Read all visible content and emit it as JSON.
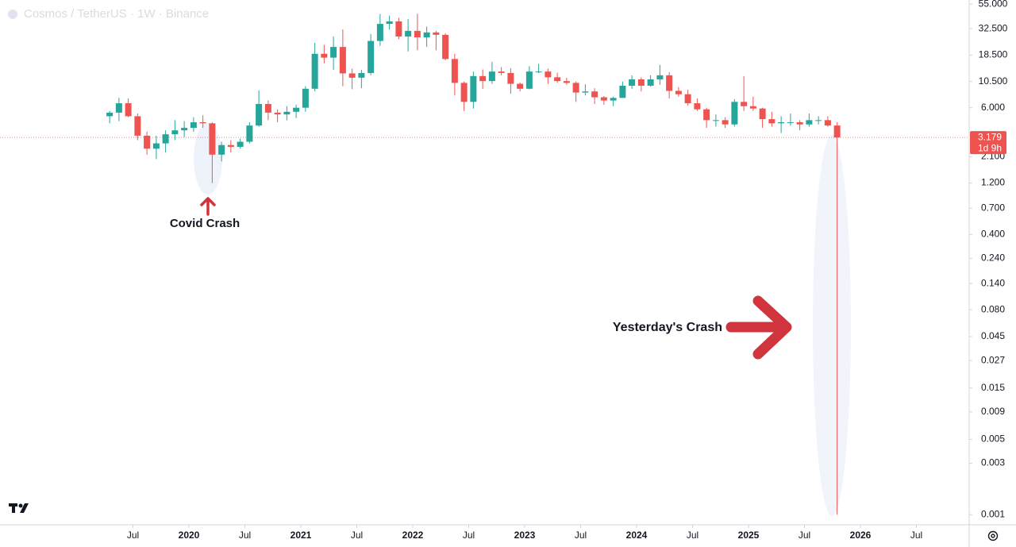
{
  "chart_data": {
    "type": "candlestick",
    "title": "Cosmos / TetherUS · 1W · Binance",
    "log_scale": true,
    "up_color": "#26a69a",
    "down_color": "#ef5350",
    "x": [
      "2019-04",
      "2019-05",
      "2019-06",
      "2019-07",
      "2019-08",
      "2019-09",
      "2019-10",
      "2019-11",
      "2019-12",
      "2020-01",
      "2020-02",
      "2020-03",
      "2020-04",
      "2020-05",
      "2020-06",
      "2020-07",
      "2020-08",
      "2020-09",
      "2020-10",
      "2020-11",
      "2020-12",
      "2021-01",
      "2021-02",
      "2021-03",
      "2021-04",
      "2021-05",
      "2021-06",
      "2021-07",
      "2021-08",
      "2021-09",
      "2021-10",
      "2021-11",
      "2021-12",
      "2022-01",
      "2022-02",
      "2022-03",
      "2022-04",
      "2022-05",
      "2022-06",
      "2022-07",
      "2022-08",
      "2022-09",
      "2022-10",
      "2022-11",
      "2022-12",
      "2023-01",
      "2023-02",
      "2023-03",
      "2023-04",
      "2023-05",
      "2023-06",
      "2023-07",
      "2023-08",
      "2023-09",
      "2023-10",
      "2023-11",
      "2023-12",
      "2024-01",
      "2024-02",
      "2024-03",
      "2024-04",
      "2024-05",
      "2024-06",
      "2024-07",
      "2024-08",
      "2024-09",
      "2024-10",
      "2024-11",
      "2024-12",
      "2025-01",
      "2025-02",
      "2025-03",
      "2025-04",
      "2025-05",
      "2025-06",
      "2025-07",
      "2025-08",
      "2025-09",
      "2025-10"
    ],
    "open": [
      5.0,
      5.4,
      6.6,
      5.0,
      3.3,
      2.5,
      2.8,
      3.4,
      3.7,
      3.9,
      4.4,
      4.3,
      2.2,
      2.7,
      2.6,
      2.9,
      4.1,
      6.5,
      5.4,
      5.2,
      5.5,
      6.0,
      9.0,
      19.0,
      17.5,
      22.0,
      12.5,
      11.4,
      12.6,
      25.0,
      36.0,
      38.0,
      27.5,
      31.0,
      27.0,
      30.0,
      28.5,
      17.0,
      10.2,
      6.8,
      11.8,
      10.6,
      13.0,
      12.6,
      10.0,
      9.0,
      13.0,
      13.0,
      11.5,
      10.6,
      10.2,
      8.3,
      8.5,
      7.5,
      7.0,
      7.4,
      9.6,
      11.0,
      9.6,
      11.0,
      12.0,
      8.6,
      8.0,
      6.6,
      5.8,
      4.6,
      4.6,
      4.2,
      6.8,
      6.2,
      5.9,
      4.7,
      4.3,
      4.4,
      4.4,
      4.2,
      4.6,
      4.6,
      4.1
    ],
    "high": [
      5.6,
      7.4,
      7.3,
      5.3,
      3.6,
      3.3,
      3.7,
      4.6,
      4.5,
      4.9,
      5.1,
      4.4,
      2.9,
      3.0,
      3.1,
      4.4,
      8.7,
      7.0,
      5.8,
      6.2,
      6.4,
      9.5,
      24.0,
      23.0,
      27.5,
      32.0,
      13.8,
      13.5,
      29.0,
      44.5,
      43.0,
      41.0,
      40.0,
      44.7,
      34.0,
      31.0,
      29.5,
      19.0,
      10.5,
      13.0,
      13.6,
      16.0,
      14.3,
      14.0,
      10.3,
      14.6,
      15.3,
      13.8,
      12.7,
      11.4,
      10.5,
      9.9,
      9.1,
      7.7,
      7.6,
      10.5,
      12.0,
      11.5,
      12.0,
      15.0,
      12.8,
      9.3,
      8.8,
      7.3,
      6.0,
      5.2,
      4.9,
      7.2,
      11.8,
      7.6,
      6.0,
      5.5,
      5.0,
      5.3,
      4.6,
      5.3,
      5.0,
      5.0,
      4.4
    ],
    "low": [
      4.3,
      4.5,
      4.9,
      3.0,
      2.2,
      2.0,
      2.3,
      3.0,
      3.2,
      3.6,
      3.9,
      1.2,
      1.9,
      2.3,
      2.5,
      2.8,
      4.0,
      4.6,
      4.4,
      4.6,
      4.8,
      5.5,
      8.5,
      15.5,
      13.5,
      9.5,
      8.9,
      9.1,
      12.0,
      22.5,
      32.0,
      26.0,
      20.0,
      20.5,
      22.0,
      20.5,
      16.5,
      7.8,
      5.6,
      5.9,
      9.0,
      10.0,
      12.0,
      8.1,
      8.5,
      8.9,
      12.6,
      10.0,
      10.2,
      9.8,
      6.8,
      7.8,
      6.5,
      6.4,
      6.2,
      7.4,
      9.0,
      8.5,
      9.4,
      9.8,
      7.3,
      7.6,
      6.3,
      5.6,
      3.9,
      4.0,
      3.9,
      4.0,
      5.6,
      5.6,
      3.9,
      4.0,
      3.5,
      4.1,
      3.7,
      4.0,
      4.2,
      4.0,
      0.001
    ],
    "close": [
      5.4,
      6.6,
      5.0,
      3.3,
      2.5,
      2.8,
      3.4,
      3.7,
      3.9,
      4.4,
      4.3,
      2.2,
      2.7,
      2.6,
      2.9,
      4.1,
      6.5,
      5.4,
      5.2,
      5.5,
      6.0,
      9.0,
      19.0,
      17.5,
      22.0,
      12.5,
      11.4,
      12.6,
      25.0,
      36.0,
      38.0,
      27.5,
      31.0,
      27.0,
      30.0,
      28.5,
      17.0,
      10.2,
      6.8,
      11.8,
      10.6,
      13.0,
      12.6,
      10.0,
      9.0,
      13.0,
      13.0,
      11.5,
      10.6,
      10.2,
      8.3,
      8.5,
      7.5,
      7.0,
      7.4,
      9.6,
      11.0,
      9.6,
      11.0,
      12.0,
      8.6,
      8.0,
      6.6,
      5.8,
      4.6,
      4.6,
      4.2,
      6.8,
      6.2,
      5.9,
      4.7,
      4.3,
      4.4,
      4.4,
      4.2,
      4.6,
      4.6,
      4.1,
      3.179
    ],
    "countdown": "1d 9h",
    "ylim": [
      0.00082,
      60
    ],
    "yticks": [
      {
        "value": 55,
        "label": "55.000"
      },
      {
        "value": 32.5,
        "label": "32.500"
      },
      {
        "value": 18.5,
        "label": "18.500"
      },
      {
        "value": 10.5,
        "label": "10.500"
      },
      {
        "value": 6,
        "label": "6.000"
      },
      {
        "value": 2.1,
        "label": "2.100"
      },
      {
        "value": 1.2,
        "label": "1.200"
      },
      {
        "value": 0.7,
        "label": "0.700"
      },
      {
        "value": 0.4,
        "label": "0.400"
      },
      {
        "value": 0.24,
        "label": "0.240"
      },
      {
        "value": 0.14,
        "label": "0.140"
      },
      {
        "value": 0.08,
        "label": "0.080"
      },
      {
        "value": 0.045,
        "label": "0.045"
      },
      {
        "value": 0.027,
        "label": "0.027"
      },
      {
        "value": 0.015,
        "label": "0.015"
      },
      {
        "value": 0.009,
        "label": "0.009"
      },
      {
        "value": 0.005,
        "label": "0.005"
      },
      {
        "value": 0.003,
        "label": "0.003"
      },
      {
        "value": 0.001,
        "label": "0.001"
      }
    ],
    "xticks": [
      {
        "value": "2019-07",
        "label": "Jul"
      },
      {
        "value": "2020-01",
        "label": "2020"
      },
      {
        "value": "2020-07",
        "label": "Jul"
      },
      {
        "value": "2021-01",
        "label": "2021"
      },
      {
        "value": "2021-07",
        "label": "Jul"
      },
      {
        "value": "2022-01",
        "label": "2022"
      },
      {
        "value": "2022-07",
        "label": "Jul"
      },
      {
        "value": "2023-01",
        "label": "2023"
      },
      {
        "value": "2023-07",
        "label": "Jul"
      },
      {
        "value": "2024-01",
        "label": "2024"
      },
      {
        "value": "2024-07",
        "label": "Jul"
      },
      {
        "value": "2025-01",
        "label": "2025"
      },
      {
        "value": "2025-07",
        "label": "Jul"
      },
      {
        "value": "2026-01",
        "label": "2026"
      },
      {
        "value": "2026-07",
        "label": "Jul"
      }
    ],
    "annotations": [
      {
        "text": "Covid Crash"
      },
      {
        "text": "Yesterday's Crash"
      }
    ]
  }
}
